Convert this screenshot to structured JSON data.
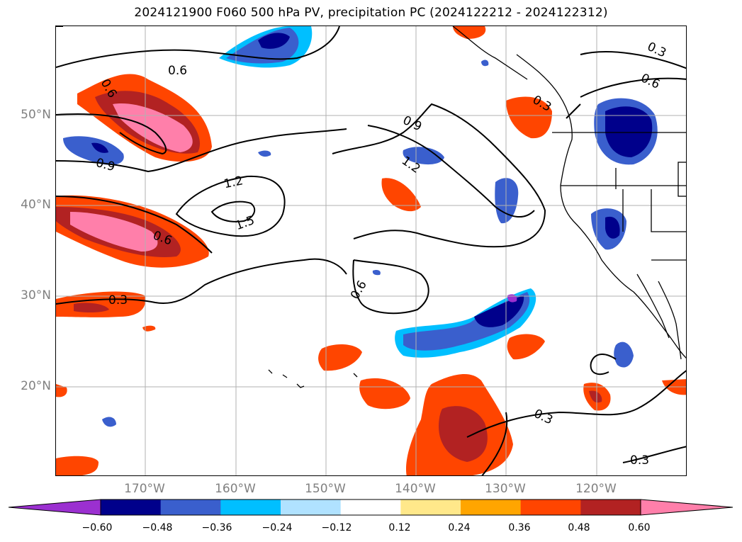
{
  "title": "2024121900 F060 500 hPa PV, precipitation PC (2024122212 - 2024122312)",
  "map": {
    "lat_labels": [
      "50°N",
      "40°N",
      "30°N",
      "20°N"
    ],
    "lon_labels": [
      "170°W",
      "160°W",
      "150°W",
      "140°W",
      "130°W",
      "120°W"
    ],
    "contour_labels": [
      "0.6",
      "0.6",
      "0.9",
      "0.9",
      "1.2",
      "1.2",
      "1.5",
      "0.6",
      "0.6",
      "0.3",
      "0.3",
      "0.6",
      "0.3",
      "0.3",
      "0.3"
    ],
    "grid": true
  },
  "colorbar": {
    "colors": [
      "#9b30d0",
      "#00008b",
      "#3a5fcd",
      "#00bfff",
      "#b0e2ff",
      "#ffffff",
      "#ffe88a",
      "#ffa500",
      "#ff4500",
      "#b22222",
      "#ff7faa"
    ],
    "ticks": [
      "−0.60",
      "−0.48",
      "−0.36",
      "−0.24",
      "−0.12",
      "0.12",
      "0.24",
      "0.36",
      "0.48",
      "0.60"
    ]
  }
}
